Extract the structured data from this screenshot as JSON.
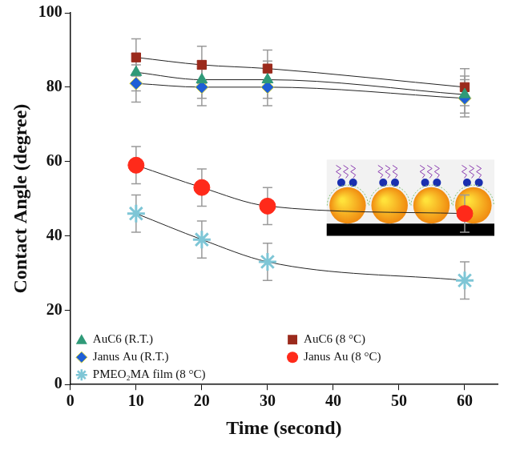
{
  "chart_data": {
    "type": "scatter",
    "x_label": "Time (second)",
    "y_label": "Contact Angle (degree)",
    "x": [
      10,
      20,
      30,
      60
    ],
    "xlim": [
      0,
      65
    ],
    "xticks": [
      0,
      10,
      20,
      30,
      40,
      50,
      60
    ],
    "ylim": [
      0,
      100
    ],
    "yticks": [
      0,
      20,
      40,
      60,
      80,
      100
    ],
    "grid": false,
    "legend": "bottom",
    "series": [
      {
        "name": "AuC6 (R.T.)",
        "color": "#2f9a78",
        "marker": "triangle",
        "line_style": "solid",
        "values": [
          84,
          82,
          82,
          78
        ],
        "errors": [
          5,
          5,
          5,
          5
        ]
      },
      {
        "name": "AuC6 (8 °C)",
        "color": "#9b2a1c",
        "marker": "square",
        "line_style": "solid",
        "values": [
          88,
          86,
          85,
          80
        ],
        "errors": [
          5,
          5,
          5,
          5
        ]
      },
      {
        "name": "Janus Au (R.T.)",
        "color": "#1f5fd6",
        "marker": "diamond",
        "line_style": "solid",
        "values": [
          81,
          80,
          80,
          77
        ],
        "errors": [
          5,
          5,
          5,
          5
        ]
      },
      {
        "name": "Janus Au (8 °C)",
        "color": "#ff2a1a",
        "marker": "circle",
        "line_style": "solid",
        "values": [
          59,
          53,
          48,
          46
        ],
        "errors": [
          5,
          5,
          5,
          5
        ]
      },
      {
        "name": "PMEO₂MA film (8 °C)",
        "color": "#7ec6d6",
        "marker": "star",
        "line_style": "solid",
        "values": [
          46,
          39,
          33,
          28
        ],
        "errors": [
          5,
          5,
          5,
          5
        ]
      }
    ]
  }
}
